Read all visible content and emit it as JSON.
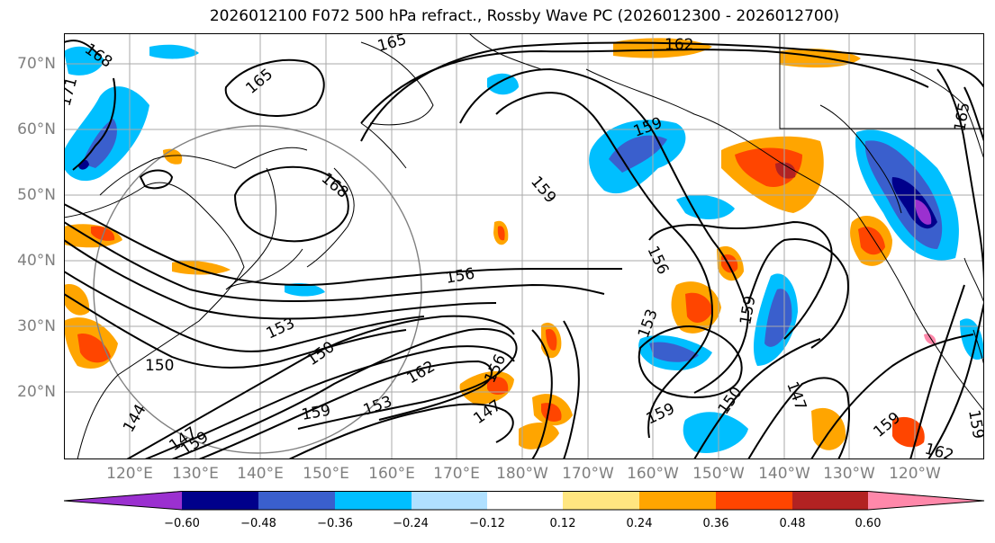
{
  "title": "2026012100 F072 500 hPa refract., Rossby Wave PC (2026012300 - 2026012700)",
  "lat_labels": [
    "70°N",
    "60°N",
    "50°N",
    "40°N",
    "30°N",
    "20°N"
  ],
  "lon_labels": [
    "120°E",
    "130°E",
    "140°E",
    "150°E",
    "160°E",
    "170°E",
    "180°W",
    "170°W",
    "160°W",
    "150°W",
    "140°W",
    "130°W",
    "120°W"
  ],
  "contour_labels": [
    "168",
    "171",
    "165",
    "165",
    "168",
    "162",
    "159",
    "159",
    "165",
    "156",
    "156",
    "153",
    "159",
    "153",
    "150",
    "150",
    "162",
    "156",
    "159",
    "153",
    "147",
    "144",
    "147",
    "159",
    "159",
    "150",
    "147",
    "159",
    "162",
    "159"
  ],
  "colorbar": {
    "ticks": [
      "−0.60",
      "−0.48",
      "−0.36",
      "−0.24",
      "−0.12",
      "0.12",
      "0.24",
      "0.36",
      "0.48",
      "0.60"
    ],
    "colors": [
      "#9b30d0",
      "#00008b",
      "#3a5fcd",
      "#00bfff",
      "#b0e0ff",
      "#ffffff",
      "#ffe680",
      "#ffa500",
      "#ff4500",
      "#b22222",
      "#ff88aa"
    ]
  },
  "colors": {
    "grid": "#aaaaaa",
    "coast": "#000000",
    "contour": "#000000",
    "circle": "#808080"
  }
}
